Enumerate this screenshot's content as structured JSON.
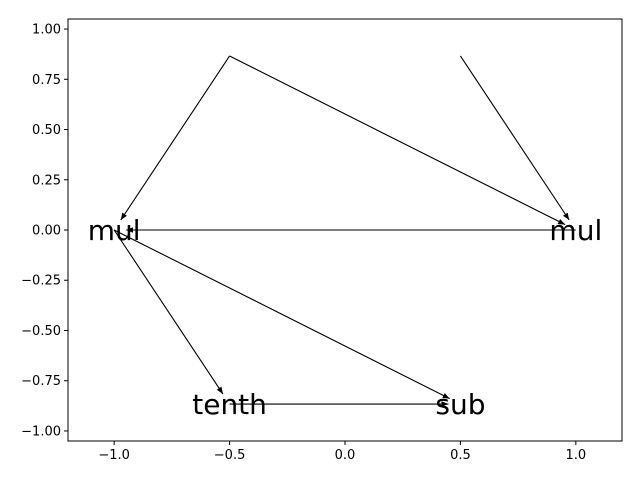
{
  "chart_data": {
    "type": "scatter",
    "title": "",
    "xlabel": "",
    "ylabel": "",
    "xlim": [
      -1.2,
      1.2
    ],
    "ylim": [
      -1.05,
      1.05
    ],
    "grid": false,
    "x_ticks": [
      {
        "value": -1.0,
        "label": "−1.0"
      },
      {
        "value": -0.5,
        "label": "−0.5"
      },
      {
        "value": 0.0,
        "label": "0.0"
      },
      {
        "value": 0.5,
        "label": "0.5"
      },
      {
        "value": 1.0,
        "label": "1.0"
      }
    ],
    "y_ticks": [
      {
        "value": 1.0,
        "label": "1.00"
      },
      {
        "value": 0.75,
        "label": "0.75"
      },
      {
        "value": 0.5,
        "label": "0.50"
      },
      {
        "value": 0.25,
        "label": "0.25"
      },
      {
        "value": 0.0,
        "label": "0.00"
      },
      {
        "value": -0.25,
        "label": "−0.25"
      },
      {
        "value": -0.5,
        "label": "−0.50"
      },
      {
        "value": -0.75,
        "label": "−0.75"
      },
      {
        "value": -1.0,
        "label": "−1.00"
      }
    ],
    "nodes": [
      {
        "id": "n0",
        "x": 1.0,
        "y": 0.0,
        "label": "mul"
      },
      {
        "id": "n1",
        "x": 0.5,
        "y": 0.866,
        "label": ""
      },
      {
        "id": "n2",
        "x": -0.5,
        "y": 0.866,
        "label": ""
      },
      {
        "id": "n3",
        "x": -1.0,
        "y": 0.0,
        "label": "mul"
      },
      {
        "id": "n4",
        "x": -0.5,
        "y": -0.866,
        "label": "tenth"
      },
      {
        "id": "n5",
        "x": 0.5,
        "y": -0.866,
        "label": "sub"
      }
    ],
    "edges": [
      {
        "from": "n2",
        "to": "n3"
      },
      {
        "from": "n2",
        "to": "n0"
      },
      {
        "from": "n1",
        "to": "n0"
      },
      {
        "from": "n0",
        "to": "n3"
      },
      {
        "from": "n3",
        "to": "n4"
      },
      {
        "from": "n3",
        "to": "n5"
      },
      {
        "from": "n4",
        "to": "n5"
      }
    ]
  }
}
